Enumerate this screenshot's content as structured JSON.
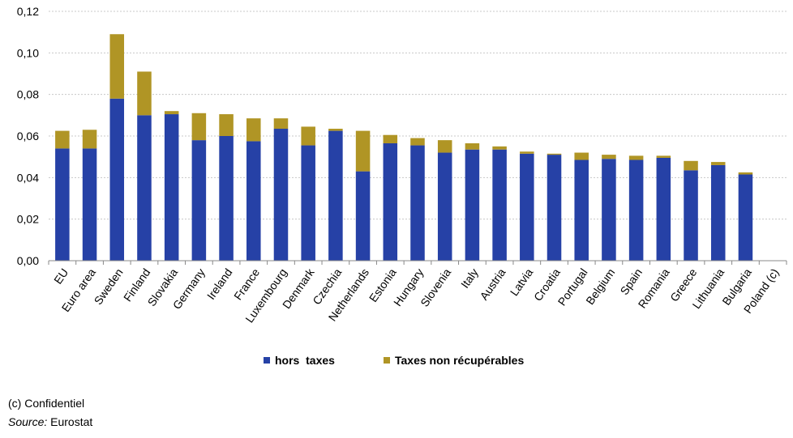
{
  "chart_data": {
    "type": "bar",
    "stacked": true,
    "categories": [
      "EU",
      "Euro area",
      "Sweden",
      "Finland",
      "Slovakia",
      "Germany",
      "Ireland",
      "France",
      "Luxembourg",
      "Denmark",
      "Czechia",
      "Netherlands",
      "Estonia",
      "Hungary",
      "Slovenia",
      "Italy",
      "Austria",
      "Latvia",
      "Croatia",
      "Portugal",
      "Belgium",
      "Spain",
      "Romania",
      "Greece",
      "Lithuania",
      "Bulgaria",
      "Poland (c)"
    ],
    "series": [
      {
        "name": "hors  taxes",
        "color": "#2641A6",
        "values": [
          0.054,
          0.054,
          0.078,
          0.07,
          0.0705,
          0.058,
          0.06,
          0.0575,
          0.0635,
          0.0555,
          0.0625,
          0.043,
          0.0565,
          0.0555,
          0.052,
          0.0535,
          0.0535,
          0.0515,
          0.051,
          0.0485,
          0.049,
          0.0485,
          0.0495,
          0.0435,
          0.046,
          0.0415,
          null
        ]
      },
      {
        "name": "Taxes non récupérables",
        "color": "#B09525",
        "values": [
          0.0085,
          0.009,
          0.031,
          0.021,
          0.0015,
          0.013,
          0.0105,
          0.011,
          0.005,
          0.009,
          0.001,
          0.0195,
          0.004,
          0.0035,
          0.006,
          0.003,
          0.0015,
          0.001,
          0.0005,
          0.0035,
          0.002,
          0.002,
          0.001,
          0.0045,
          0.0015,
          0.001,
          null
        ]
      }
    ],
    "ylim": [
      0,
      0.12
    ],
    "yticks": [
      "0,00",
      "0,02",
      "0,04",
      "0,06",
      "0,08",
      "0,10",
      "0,12"
    ],
    "grid": true,
    "legend": "bottom"
  },
  "footnotes": {
    "confidential": "(c) Confidentiel",
    "source_label": "Source:",
    "source_value": " Eurostat"
  }
}
